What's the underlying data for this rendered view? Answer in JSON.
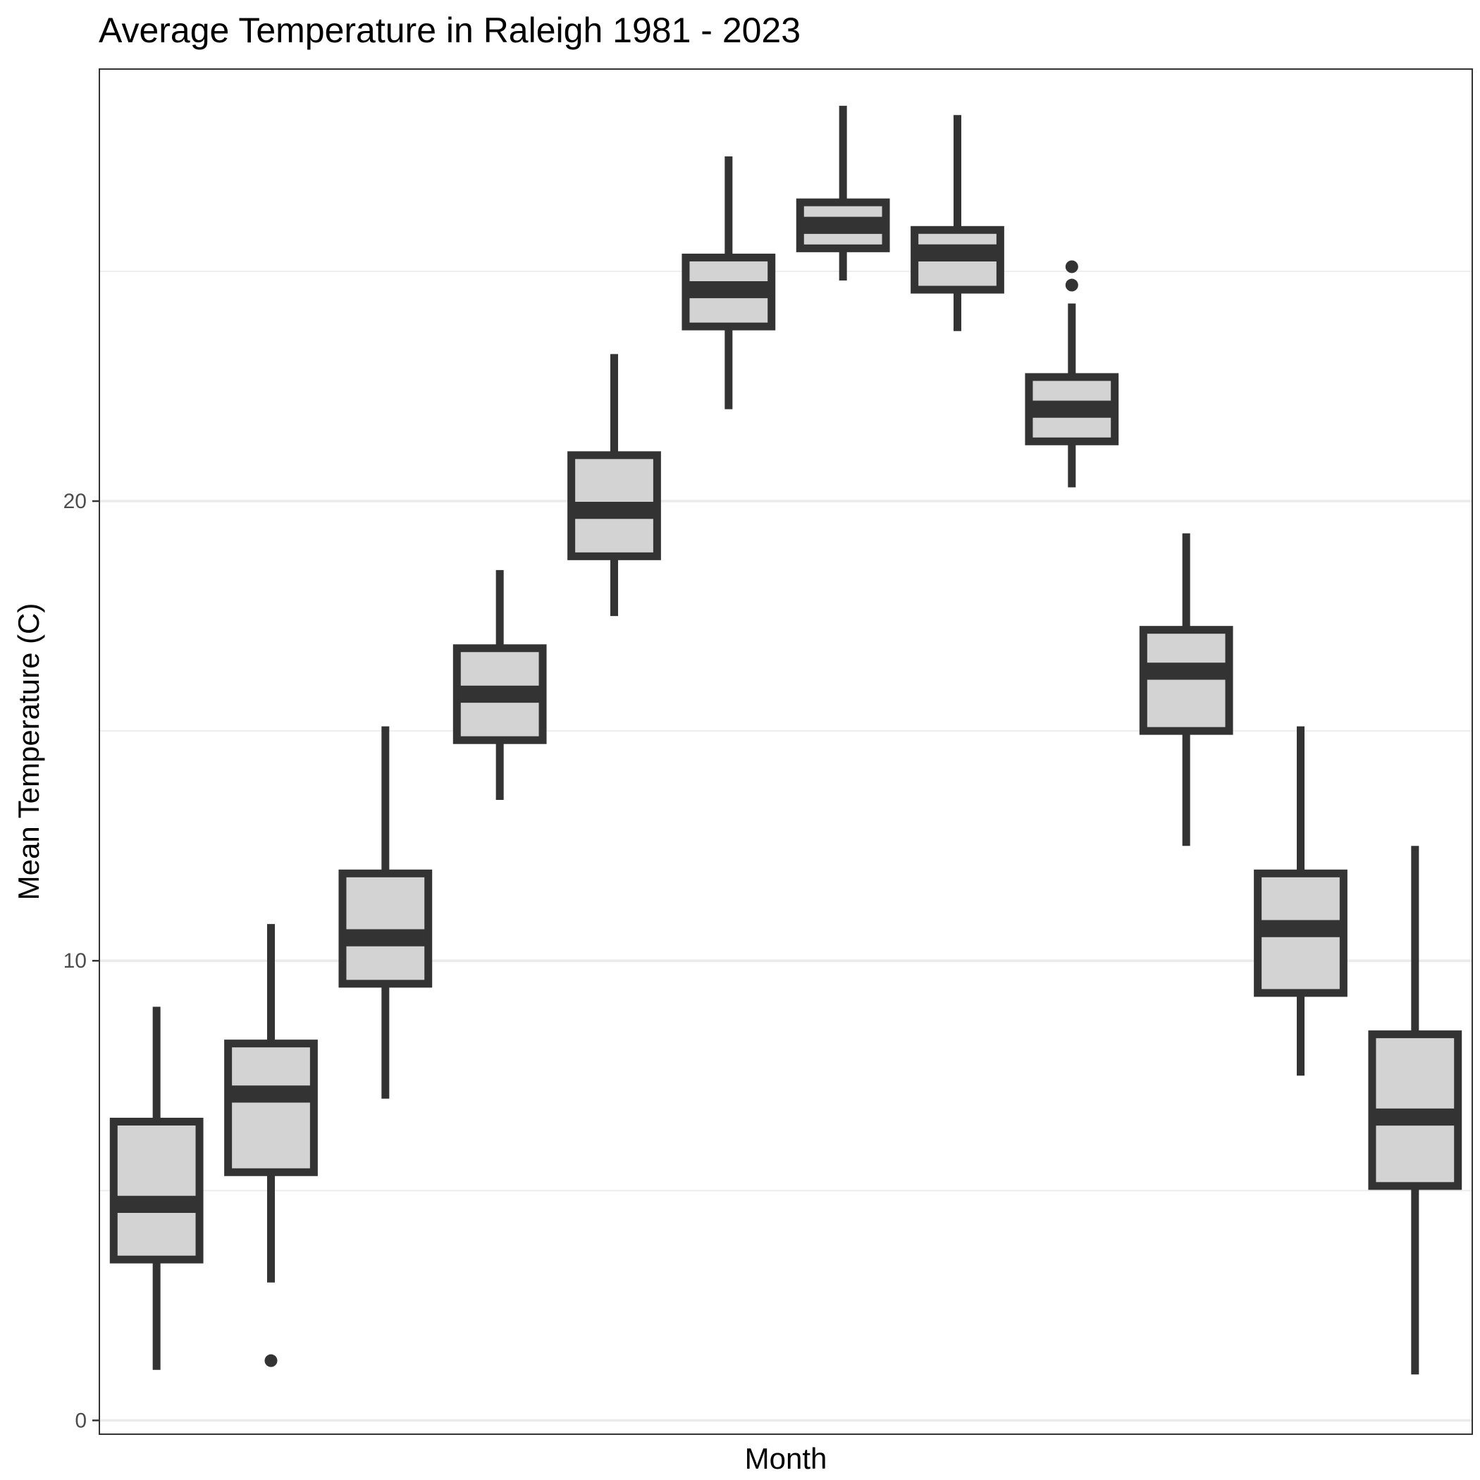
{
  "chart_data": {
    "type": "boxplot",
    "title": "Average Temperature in Raleigh 1981 - 2023",
    "xlabel": "Month",
    "ylabel": "Mean Temperature (C)",
    "ylim": [
      -0.3,
      29.4
    ],
    "yticks": [
      0,
      10,
      20
    ],
    "grid": true,
    "legend": "none",
    "colors": {
      "box_fill": "#d3d3d3",
      "box_line": "#333333",
      "grid": "#ebebeb",
      "panel_border": "#333333"
    },
    "boxes": [
      {
        "low": 1.1,
        "q1": 3.5,
        "median": 4.7,
        "q3": 6.5,
        "high": 9.0,
        "outliers": []
      },
      {
        "low": 3.0,
        "q1": 5.4,
        "median": 7.1,
        "q3": 8.2,
        "high": 10.8,
        "outliers": [
          1.3
        ]
      },
      {
        "low": 7.0,
        "q1": 9.5,
        "median": 10.5,
        "q3": 11.9,
        "high": 15.1,
        "outliers": []
      },
      {
        "low": 13.5,
        "q1": 14.8,
        "median": 15.8,
        "q3": 16.8,
        "high": 18.5,
        "outliers": []
      },
      {
        "low": 17.5,
        "q1": 18.8,
        "median": 19.8,
        "q3": 21.0,
        "high": 23.2,
        "outliers": []
      },
      {
        "low": 22.0,
        "q1": 23.8,
        "median": 24.6,
        "q3": 25.3,
        "high": 27.5,
        "outliers": []
      },
      {
        "low": 24.8,
        "q1": 25.5,
        "median": 26.0,
        "q3": 26.5,
        "high": 28.6,
        "outliers": []
      },
      {
        "low": 23.7,
        "q1": 24.6,
        "median": 25.4,
        "q3": 25.9,
        "high": 28.4,
        "outliers": []
      },
      {
        "low": 20.3,
        "q1": 21.3,
        "median": 22.0,
        "q3": 22.7,
        "high": 24.3,
        "outliers": [
          24.7,
          25.1
        ]
      },
      {
        "low": 12.5,
        "q1": 15.0,
        "median": 16.3,
        "q3": 17.2,
        "high": 19.3,
        "outliers": []
      },
      {
        "low": 7.5,
        "q1": 9.3,
        "median": 10.7,
        "q3": 11.9,
        "high": 15.1,
        "outliers": []
      },
      {
        "low": 1.0,
        "q1": 5.1,
        "median": 6.6,
        "q3": 8.4,
        "high": 12.5,
        "outliers": []
      }
    ]
  }
}
